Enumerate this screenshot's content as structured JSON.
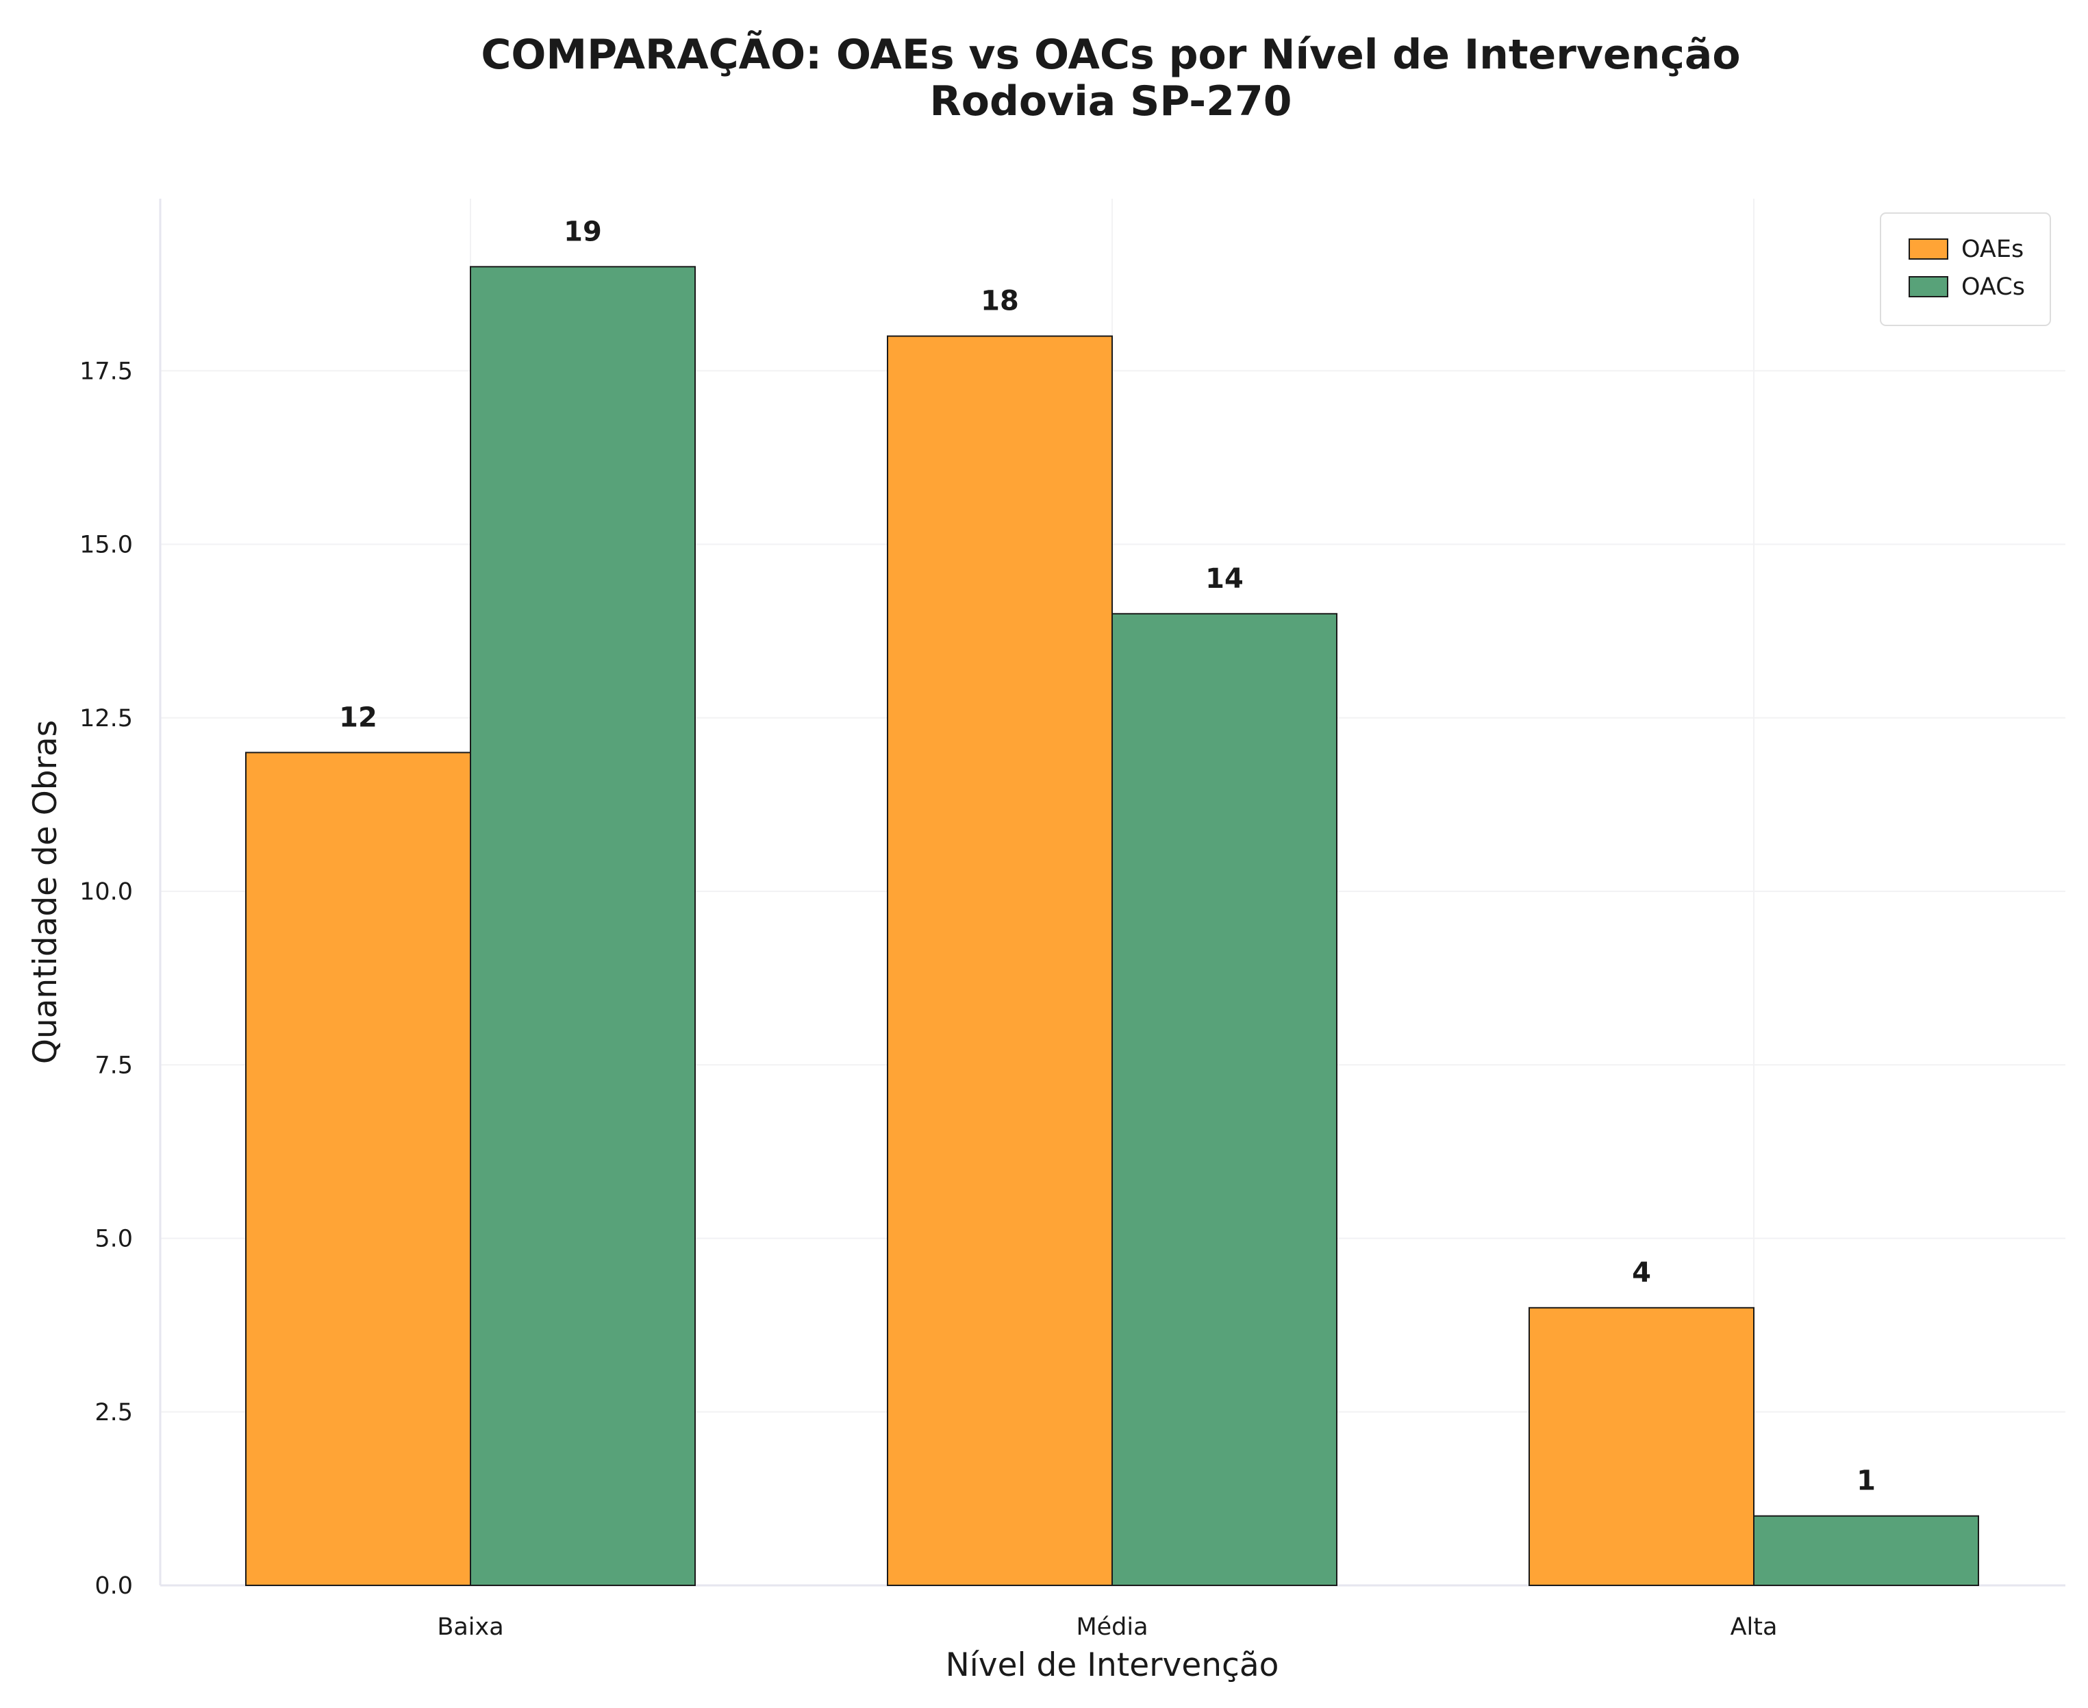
{
  "chart_data": {
    "type": "bar",
    "title": "COMPARAÇÃO: OAEs vs OACs por Nível de Intervenção",
    "subtitle": "Rodovia SP-270",
    "xlabel": "Nível de Intervenção",
    "ylabel": "Quantidade de Obras",
    "categories": [
      "Baixa",
      "Média",
      "Alta"
    ],
    "series": [
      {
        "name": "OAEs",
        "values": [
          12,
          18,
          4
        ],
        "color": "#FFA436"
      },
      {
        "name": "OACs",
        "values": [
          19,
          14,
          1
        ],
        "color": "#58A279"
      }
    ],
    "ylim": [
      0,
      20
    ],
    "yticks": [
      "0.0",
      "2.5",
      "5.0",
      "7.5",
      "10.0",
      "12.5",
      "15.0",
      "17.5"
    ],
    "grid": true,
    "legend_position": "top-right"
  }
}
